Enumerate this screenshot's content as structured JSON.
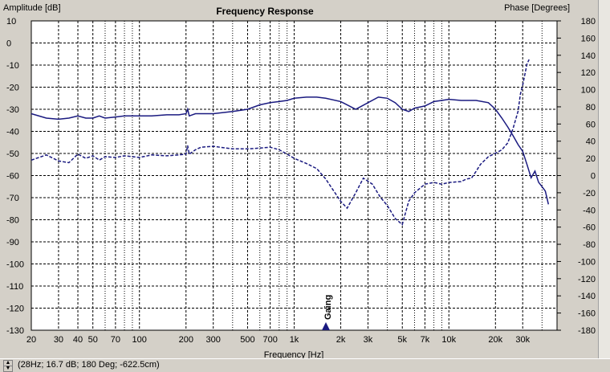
{
  "chart_data": {
    "type": "line",
    "title": "Frequency Response",
    "xlabel": "Frequency [Hz]",
    "ylabel_left": "Amplitude [dB]",
    "ylabel_right": "Phase [Degrees]",
    "x_scale": "log",
    "xlim": [
      20,
      50000
    ],
    "ylim_left": [
      -130,
      10
    ],
    "ylim_right": [
      -180,
      180
    ],
    "grid": true,
    "x_ticks": [
      "20",
      "30",
      "40",
      "50",
      "70",
      "100",
      "200",
      "300",
      "500",
      "700",
      "1k",
      "2k",
      "3k",
      "5k",
      "7k",
      "10k",
      "20k",
      "30k"
    ],
    "y_left_ticks": [
      "10",
      "0",
      "-10",
      "-20",
      "-30",
      "-40",
      "-50",
      "-60",
      "-70",
      "-80",
      "-90",
      "-100",
      "-110",
      "-120",
      "-130"
    ],
    "y_right_ticks": [
      "180",
      "160",
      "140",
      "120",
      "100",
      "80",
      "60",
      "40",
      "20",
      "0",
      "-20",
      "-40",
      "-60",
      "-80",
      "-100",
      "-120",
      "-140",
      "-160",
      "-180"
    ],
    "annotation": "Gaing",
    "series": [
      {
        "axis": "left",
        "style": "solid",
        "points": [
          [
            20,
            -32
          ],
          [
            25,
            -34
          ],
          [
            30,
            -34.5
          ],
          [
            35,
            -34
          ],
          [
            40,
            -33
          ],
          [
            45,
            -34
          ],
          [
            50,
            -34
          ],
          [
            55,
            -33
          ],
          [
            60,
            -34
          ],
          [
            70,
            -33.5
          ],
          [
            80,
            -33
          ],
          [
            100,
            -33
          ],
          [
            120,
            -33
          ],
          [
            150,
            -32.5
          ],
          [
            180,
            -32.5
          ],
          [
            200,
            -32
          ],
          [
            205,
            -30
          ],
          [
            210,
            -33
          ],
          [
            230,
            -32
          ],
          [
            250,
            -32
          ],
          [
            300,
            -32
          ],
          [
            400,
            -31
          ],
          [
            500,
            -30
          ],
          [
            600,
            -28
          ],
          [
            700,
            -27
          ],
          [
            800,
            -26.5
          ],
          [
            900,
            -26
          ],
          [
            1000,
            -25
          ],
          [
            1200,
            -24.5
          ],
          [
            1400,
            -24.5
          ],
          [
            1600,
            -25
          ],
          [
            2000,
            -26.5
          ],
          [
            2500,
            -30
          ],
          [
            3000,
            -27
          ],
          [
            3500,
            -24.5
          ],
          [
            4000,
            -25
          ],
          [
            4500,
            -27
          ],
          [
            5000,
            -30
          ],
          [
            5500,
            -31
          ],
          [
            6000,
            -29.5
          ],
          [
            7000,
            -28.5
          ],
          [
            8000,
            -26.5
          ],
          [
            9000,
            -26
          ],
          [
            10000,
            -25.5
          ],
          [
            12000,
            -26
          ],
          [
            15000,
            -26
          ],
          [
            18000,
            -27
          ],
          [
            20000,
            -30
          ],
          [
            22000,
            -34
          ],
          [
            24000,
            -38
          ],
          [
            26000,
            -42
          ],
          [
            28000,
            -46
          ],
          [
            30000,
            -49
          ],
          [
            32000,
            -55
          ],
          [
            34000,
            -61
          ],
          [
            36000,
            -58
          ],
          [
            38000,
            -63
          ],
          [
            40000,
            -65
          ],
          [
            42000,
            -67
          ],
          [
            44000,
            -73
          ]
        ]
      },
      {
        "axis": "right",
        "style": "dashed",
        "points": [
          [
            20,
            18
          ],
          [
            25,
            24
          ],
          [
            30,
            17
          ],
          [
            35,
            15
          ],
          [
            40,
            25
          ],
          [
            45,
            20
          ],
          [
            50,
            23
          ],
          [
            55,
            18
          ],
          [
            60,
            22
          ],
          [
            70,
            21
          ],
          [
            80,
            23
          ],
          [
            100,
            21
          ],
          [
            120,
            24
          ],
          [
            150,
            23
          ],
          [
            180,
            24
          ],
          [
            200,
            25
          ],
          [
            205,
            35
          ],
          [
            210,
            25
          ],
          [
            230,
            30
          ],
          [
            250,
            33
          ],
          [
            300,
            34
          ],
          [
            400,
            31
          ],
          [
            500,
            31
          ],
          [
            600,
            32
          ],
          [
            700,
            33
          ],
          [
            800,
            30
          ],
          [
            900,
            25
          ],
          [
            1000,
            20
          ],
          [
            1200,
            14
          ],
          [
            1400,
            8
          ],
          [
            1600,
            -4
          ],
          [
            2000,
            -30
          ],
          [
            2200,
            -38
          ],
          [
            2500,
            -20
          ],
          [
            2800,
            -3
          ],
          [
            3200,
            -10
          ],
          [
            3600,
            -25
          ],
          [
            4000,
            -35
          ],
          [
            4500,
            -50
          ],
          [
            5000,
            -57
          ],
          [
            5500,
            -30
          ],
          [
            6000,
            -20
          ],
          [
            7000,
            -10
          ],
          [
            8000,
            -8
          ],
          [
            9000,
            -10
          ],
          [
            10000,
            -8
          ],
          [
            12000,
            -7
          ],
          [
            13000,
            -4
          ],
          [
            14000,
            -3
          ],
          [
            15000,
            5
          ],
          [
            16000,
            13
          ],
          [
            18000,
            22
          ],
          [
            20000,
            26
          ],
          [
            22000,
            30
          ],
          [
            24000,
            38
          ],
          [
            26000,
            55
          ],
          [
            28000,
            75
          ],
          [
            29000,
            95
          ],
          [
            30000,
            105
          ],
          [
            31000,
            118
          ],
          [
            32000,
            130
          ],
          [
            33000,
            135
          ]
        ]
      }
    ]
  },
  "status_text": "(28Hz; 16.7 dB; 180 Deg; -622.5cm)",
  "colors": {
    "plot_bg": "#ffffff",
    "frame_bg": "#d4d0c8",
    "series": "#1a1a80",
    "grid": "#000000"
  },
  "icons": {
    "spin_up": "arrow-up-icon",
    "spin_down": "arrow-down-icon"
  }
}
